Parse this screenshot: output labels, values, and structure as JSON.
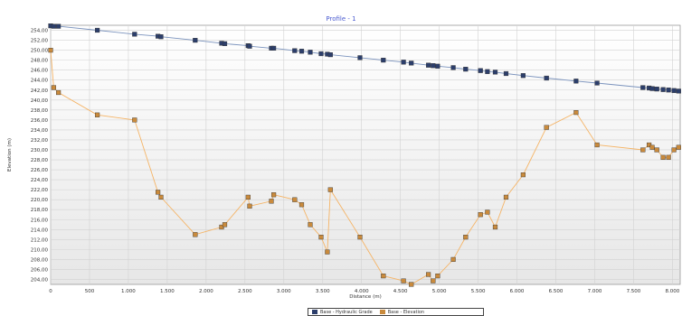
{
  "chart_data": {
    "type": "line",
    "title": "Profile - 1",
    "xlabel": "Distance (m)",
    "ylabel": "Elevation (m)",
    "xlim": [
      0,
      8100
    ],
    "ylim": [
      203,
      255
    ],
    "grid": true,
    "legend_position": "bottom",
    "x_ticks": [
      0,
      500,
      1000,
      1500,
      2000,
      2500,
      3000,
      3500,
      4000,
      4500,
      5000,
      5500,
      6000,
      6500,
      7000,
      7500,
      8000
    ],
    "x_tick_labels": [
      "0",
      "500",
      "1.000",
      "1.500",
      "2.000",
      "2.500",
      "3.000",
      "3.500",
      "4.000",
      "4.500",
      "5.000",
      "5.500",
      "6.000",
      "6.500",
      "7.000",
      "7.500",
      "8.000"
    ],
    "y_ticks": [
      204,
      206,
      208,
      210,
      212,
      214,
      216,
      218,
      220,
      222,
      224,
      226,
      228,
      230,
      232,
      234,
      236,
      238,
      240,
      242,
      244,
      246,
      248,
      250,
      252,
      254
    ],
    "y_tick_labels": [
      "204,00",
      "206,00",
      "208,00",
      "210,00",
      "212,00",
      "214,00",
      "216,00",
      "218,00",
      "220,00",
      "222,00",
      "224,00",
      "226,00",
      "228,00",
      "230,00",
      "232,00",
      "234,00",
      "236,00",
      "238,00",
      "240,00",
      "242,00",
      "244,00",
      "246,00",
      "248,00",
      "250,00",
      "252,00",
      "254,00"
    ],
    "series": [
      {
        "name": "Base - Hydraulic Grade",
        "color": "#7b93bd",
        "marker_color": "#2c3e6b",
        "x": [
          0,
          40,
          100,
          600,
          1080,
          1380,
          1420,
          1860,
          2200,
          2240,
          2540,
          2560,
          2840,
          2870,
          3140,
          3230,
          3340,
          3480,
          3560,
          3600,
          3980,
          4280,
          4540,
          4640,
          4860,
          4920,
          4980,
          5180,
          5340,
          5530,
          5620,
          5720,
          5860,
          6080,
          6380,
          6760,
          7030,
          7620,
          7700,
          7740,
          7800,
          7880,
          7950,
          8020,
          8080
        ],
        "y": [
          254.9,
          254.8,
          254.8,
          254.0,
          253.2,
          252.8,
          252.7,
          252.0,
          251.4,
          251.3,
          250.9,
          250.8,
          250.4,
          250.4,
          249.9,
          249.8,
          249.6,
          249.3,
          249.2,
          249.1,
          248.5,
          248.0,
          247.6,
          247.4,
          247.0,
          246.9,
          246.8,
          246.5,
          246.2,
          245.9,
          245.7,
          245.6,
          245.3,
          244.9,
          244.4,
          243.8,
          243.4,
          242.5,
          242.4,
          242.3,
          242.2,
          242.1,
          242.0,
          241.9,
          241.8
        ]
      },
      {
        "name": "Base - Elevation",
        "color": "#f5b466",
        "marker_color": "#c98a3c",
        "x": [
          0,
          40,
          100,
          600,
          1080,
          1380,
          1420,
          1860,
          2200,
          2240,
          2540,
          2560,
          2840,
          2870,
          3140,
          3230,
          3340,
          3480,
          3560,
          3600,
          3980,
          4280,
          4540,
          4640,
          4860,
          4920,
          4980,
          5180,
          5340,
          5530,
          5620,
          5720,
          5860,
          6080,
          6380,
          6760,
          7030,
          7620,
          7700,
          7740,
          7800,
          7880,
          7950,
          8020,
          8080
        ],
        "y": [
          250.0,
          242.5,
          241.5,
          237.0,
          236.0,
          221.5,
          220.5,
          213.0,
          214.5,
          215.0,
          220.5,
          218.7,
          219.7,
          221.0,
          220.0,
          219.0,
          215.0,
          212.5,
          209.5,
          222.0,
          212.5,
          204.7,
          203.7,
          203.0,
          205.0,
          203.7,
          204.7,
          208.0,
          212.5,
          217.0,
          217.5,
          214.5,
          220.5,
          225.0,
          234.5,
          237.5,
          231.0,
          230.0,
          231.0,
          230.5,
          230.0,
          228.5,
          228.5,
          230.0,
          230.5
        ]
      }
    ]
  }
}
